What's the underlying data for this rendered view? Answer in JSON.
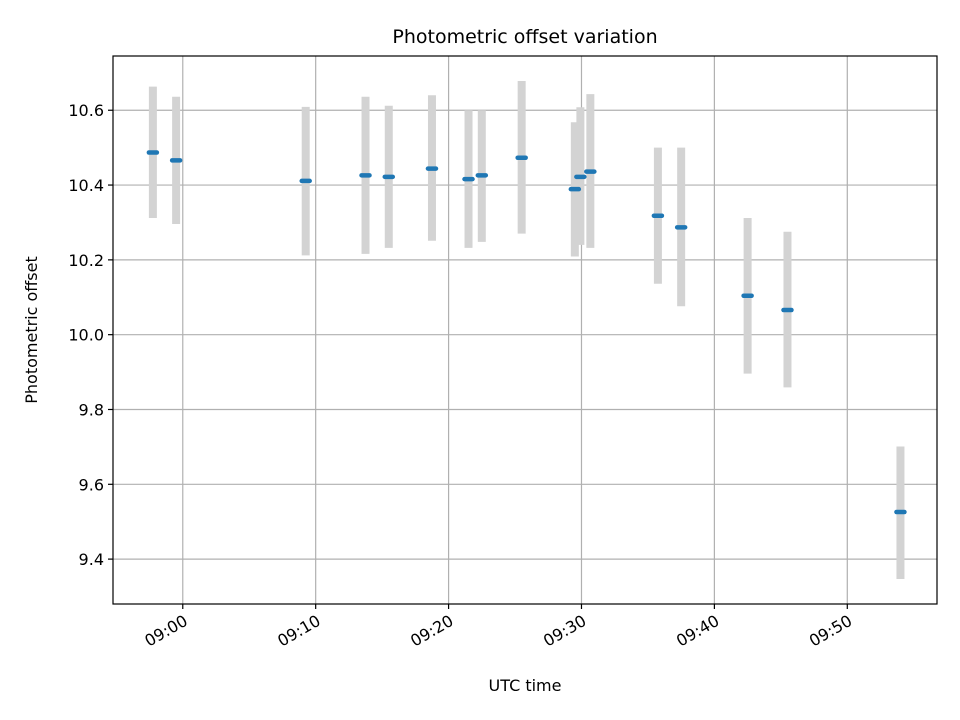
{
  "chart_data": {
    "type": "scatter",
    "title": "Photometric offset variation",
    "xlabel": "UTC time",
    "ylabel": "Photometric offset",
    "grid": true,
    "xlim": [
      "08:54:45",
      "09:56:45"
    ],
    "ylim": [
      9.28,
      10.745
    ],
    "x_ticks": [
      "09:00",
      "09:10",
      "09:20",
      "09:30",
      "09:40",
      "09:50"
    ],
    "y_ticks": [
      "9.4",
      "9.6",
      "9.8",
      "10.0",
      "10.2",
      "10.4",
      "10.6"
    ],
    "colors": {
      "point": "#1f77b4",
      "errorbar": "#d3d3d3",
      "grid": "#b0b0b0"
    },
    "points": [
      {
        "x": "08:57:45",
        "y": 10.487,
        "low": 10.312,
        "high": 10.663
      },
      {
        "x": "08:59:30",
        "y": 10.466,
        "low": 10.296,
        "high": 10.636
      },
      {
        "x": "09:09:15",
        "y": 10.411,
        "low": 10.212,
        "high": 10.609
      },
      {
        "x": "09:13:45",
        "y": 10.426,
        "low": 10.216,
        "high": 10.636
      },
      {
        "x": "09:15:30",
        "y": 10.422,
        "low": 10.232,
        "high": 10.612
      },
      {
        "x": "09:18:45",
        "y": 10.444,
        "low": 10.251,
        "high": 10.64
      },
      {
        "x": "09:21:30",
        "y": 10.416,
        "low": 10.232,
        "high": 10.6
      },
      {
        "x": "09:22:30",
        "y": 10.426,
        "low": 10.248,
        "high": 10.6
      },
      {
        "x": "09:25:30",
        "y": 10.473,
        "low": 10.27,
        "high": 10.678
      },
      {
        "x": "09:29:30",
        "y": 10.389,
        "low": 10.209,
        "high": 10.568
      },
      {
        "x": "09:29:55",
        "y": 10.422,
        "low": 10.24,
        "high": 10.608
      },
      {
        "x": "09:30:40",
        "y": 10.436,
        "low": 10.232,
        "high": 10.643
      },
      {
        "x": "09:35:45",
        "y": 10.318,
        "low": 10.136,
        "high": 10.5
      },
      {
        "x": "09:37:30",
        "y": 10.287,
        "low": 10.076,
        "high": 10.5
      },
      {
        "x": "09:42:30",
        "y": 10.104,
        "low": 9.896,
        "high": 10.312
      },
      {
        "x": "09:45:30",
        "y": 10.066,
        "low": 9.859,
        "high": 10.275
      },
      {
        "x": "09:54:00",
        "y": 9.526,
        "low": 9.347,
        "high": 9.701
      }
    ]
  }
}
